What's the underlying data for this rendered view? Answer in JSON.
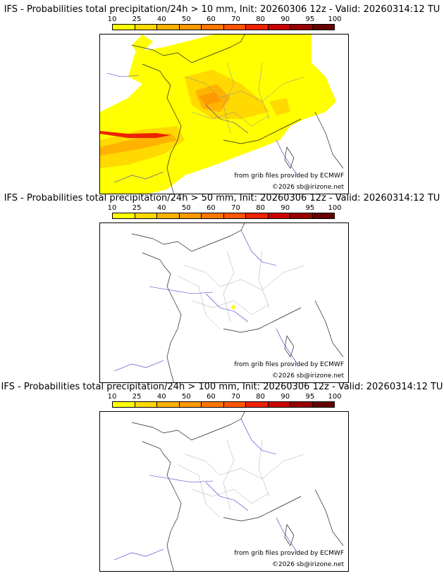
{
  "legend": {
    "ticks": [
      "10",
      "25",
      "40",
      "50",
      "60",
      "70",
      "80",
      "90",
      "95",
      "100"
    ],
    "colors": [
      "#ffff00",
      "#ffd900",
      "#ffb300",
      "#ff9900",
      "#ff7700",
      "#ff5500",
      "#ee2200",
      "#cc0000",
      "#990000",
      "#660000"
    ]
  },
  "panels": [
    {
      "title": "IFS - Probabilities total precipitation/24h > 10 mm, Init: 20260306 12z - Valid: 20260314:12 TU",
      "credit_source": "from grib files provided by ECMWF",
      "credit_copyright": "©2026 sb@irizone.net",
      "has_precip": true
    },
    {
      "title": "IFS - Probabilities total precipitation/24h > 50 mm, Init: 20260306 12z - Valid: 20260314:12 TU",
      "credit_source": "from grib files provided by ECMWF",
      "credit_copyright": "©2026 sb@irizone.net",
      "has_precip": false
    },
    {
      "title": "IFS - Probabilities total precipitation/24h > 100 mm, Init: 20260306 12z - Valid: 20260314:12 TU",
      "credit_source": "from grib files provided by ECMWF",
      "credit_copyright": "©2026 sb@irizone.net",
      "has_precip": false
    }
  ]
}
